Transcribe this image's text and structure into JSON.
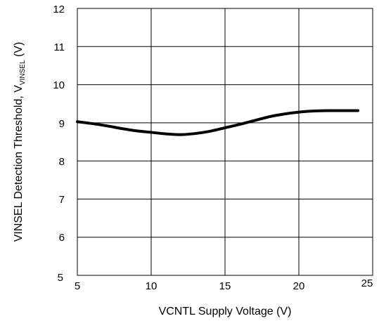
{
  "chart_data": {
    "type": "line",
    "title": "",
    "xlabel": "VCNTL Supply Voltage (V)",
    "ylabel": {
      "main": "VINSEL Detection Threshold, V",
      "subscript": "VINSEL",
      "unit": " (V)"
    },
    "xlim": [
      5,
      25
    ],
    "ylim": [
      5,
      12
    ],
    "xticks": [
      "5",
      "10",
      "15",
      "20",
      "25"
    ],
    "yticks": [
      "5",
      "6",
      "7",
      "8",
      "9",
      "10",
      "11",
      "12"
    ],
    "grid": true,
    "series": [
      {
        "x": [
          5,
          6,
          7,
          8,
          9,
          10,
          11,
          12,
          13,
          14,
          15,
          16,
          17,
          18,
          19,
          20,
          21,
          22,
          23,
          24
        ],
        "y": [
          9.03,
          8.98,
          8.92,
          8.85,
          8.79,
          8.75,
          8.71,
          8.69,
          8.72,
          8.78,
          8.87,
          8.96,
          9.06,
          9.16,
          9.23,
          9.28,
          9.31,
          9.32,
          9.32,
          9.32
        ]
      }
    ]
  }
}
